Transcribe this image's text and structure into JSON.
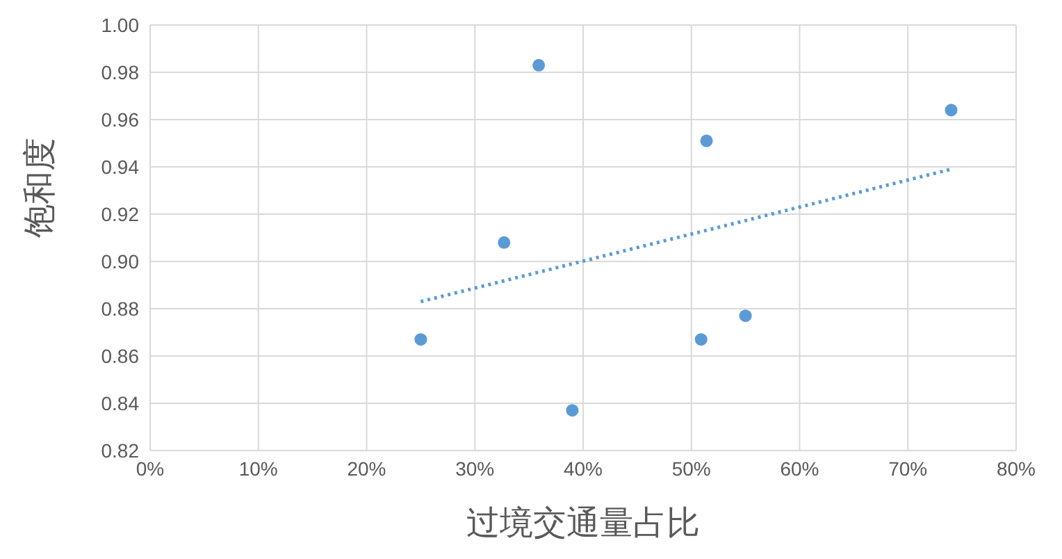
{
  "chart_data": {
    "type": "scatter",
    "xlabel": "过境交通量占比",
    "ylabel": "饱和度",
    "series": [
      {
        "color": "#5b9bd5",
        "marker": "circle",
        "x": [
          25,
          32.7,
          35.9,
          39,
          51.4,
          50.9,
          55,
          74
        ],
        "values": [
          0.867,
          0.908,
          0.983,
          0.837,
          0.951,
          0.867,
          0.877,
          0.964
        ]
      },
      {
        "type": "line",
        "color": "#5b9bd5",
        "line_style": "dotted",
        "marker": "none",
        "x": [
          25,
          74
        ],
        "values": [
          0.883,
          0.939
        ]
      }
    ],
    "xlim": [
      0,
      80
    ],
    "xticks": [
      {
        "value": 0,
        "label": "0%"
      },
      {
        "value": 10,
        "label": "10%"
      },
      {
        "value": 20,
        "label": "20%"
      },
      {
        "value": 30,
        "label": "30%"
      },
      {
        "value": 40,
        "label": "40%"
      },
      {
        "value": 50,
        "label": "50%"
      },
      {
        "value": 60,
        "label": "60%"
      },
      {
        "value": 70,
        "label": "70%"
      },
      {
        "value": 80,
        "label": "80%"
      }
    ],
    "ylim": [
      0.82,
      1.0
    ],
    "yticks": [
      {
        "value": 0.82,
        "label": "0.82"
      },
      {
        "value": 0.84,
        "label": "0.84"
      },
      {
        "value": 0.86,
        "label": "0.86"
      },
      {
        "value": 0.88,
        "label": "0.88"
      },
      {
        "value": 0.9,
        "label": "0.90"
      },
      {
        "value": 0.92,
        "label": "0.92"
      },
      {
        "value": 0.94,
        "label": "0.94"
      },
      {
        "value": 0.96,
        "label": "0.96"
      },
      {
        "value": 0.98,
        "label": "0.98"
      },
      {
        "value": 1.0,
        "label": "1.00"
      }
    ],
    "grid": true,
    "legend": false
  }
}
